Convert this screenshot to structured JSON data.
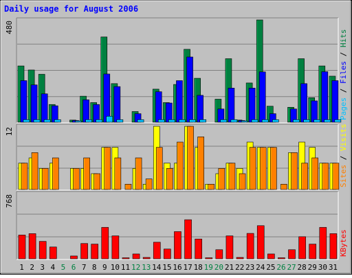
{
  "chart_data": {
    "title": "Daily usage for August 2006",
    "days": [
      "1",
      "2",
      "3",
      "4",
      "5",
      "6",
      "7",
      "8",
      "9",
      "10",
      "11",
      "12",
      "13",
      "14",
      "15",
      "16",
      "17",
      "18",
      "19",
      "20",
      "21",
      "22",
      "23",
      "24",
      "25",
      "26",
      "27",
      "28",
      "29",
      "30",
      "31"
    ],
    "weekend_days": [
      "5",
      "6",
      "12",
      "13",
      "19",
      "20",
      "26",
      "27"
    ],
    "colors": {
      "frame_bg": "#c0c0c0",
      "title": "#0000ff",
      "weekday_label": "#000000",
      "weekend_label": "#008040",
      "hits": "#008040",
      "files": "#0000ff",
      "pages": "#00c0ff",
      "visits": "#ffff00",
      "sites": "#ff8000",
      "kbytes": "#ff0000"
    },
    "panels": [
      {
        "type": "bar",
        "ymax_label": "480",
        "ylim": [
          0,
          480
        ],
        "legend": [
          "Pages",
          "Files",
          "Hits"
        ],
        "legend_separator": "/",
        "series": [
          {
            "name": "Hits",
            "color": "#008040",
            "values": [
              264,
              245,
              225,
              83,
              0,
              10,
              122,
              92,
              400,
              181,
              0,
              50,
              0,
              155,
              92,
              177,
              342,
              206,
              0,
              108,
              298,
              10,
              184,
              480,
              75,
              0,
              70,
              298,
              115,
              264,
              216
            ]
          },
          {
            "name": "Files",
            "color": "#0000ff",
            "values": [
              195,
              175,
              133,
              77,
              0,
              8,
              105,
              83,
              226,
              167,
              0,
              40,
              0,
              143,
              90,
              195,
              306,
              126,
              0,
              62,
              160,
              8,
              160,
              236,
              40,
              0,
              62,
              181,
              100,
              237,
              195
            ]
          },
          {
            "name": "Pages",
            "color": "#00c0ff",
            "values": [
              12,
              12,
              12,
              12,
              0,
              6,
              12,
              12,
              28,
              12,
              0,
              12,
              0,
              12,
              12,
              12,
              12,
              12,
              0,
              12,
              12,
              6,
              12,
              12,
              12,
              0,
              12,
              12,
              12,
              12,
              12
            ]
          }
        ]
      },
      {
        "type": "bar",
        "ymax_label": "12",
        "ylim": [
          0,
          12
        ],
        "legend": [
          "Sites",
          "Visits"
        ],
        "legend_separator": "/",
        "series": [
          {
            "name": "Visits",
            "color": "#ffff00",
            "values": [
              5,
              6,
              4,
              5,
              0,
              4,
              4,
              3,
              8,
              8,
              0,
              4,
              1,
              12,
              5,
              5,
              12,
              8,
              1,
              3,
              5,
              4,
              9,
              8,
              8,
              0,
              7,
              9,
              8,
              5,
              5
            ]
          },
          {
            "name": "Sites",
            "color": "#ff8000",
            "values": [
              5,
              7,
              4,
              6,
              0,
              4,
              6,
              3,
              8,
              6,
              1,
              6,
              2,
              8,
              4,
              9,
              12,
              10,
              1,
              4,
              5,
              3,
              8,
              8,
              8,
              1,
              7,
              5,
              6,
              5,
              5
            ]
          }
        ]
      },
      {
        "type": "bar",
        "ymax_label": "768",
        "ylim": [
          0,
          768
        ],
        "legend": [
          "KBytes"
        ],
        "legend_separator": "",
        "series": [
          {
            "name": "KBytes",
            "color": "#ff0000",
            "values": [
              280,
              296,
              205,
              139,
              0,
              33,
              180,
              173,
              370,
              270,
              12,
              57,
              16,
              195,
              115,
              320,
              460,
              233,
              12,
              107,
              270,
              16,
              299,
              390,
              57,
              12,
              107,
              260,
              173,
              370,
              296
            ]
          }
        ]
      }
    ]
  }
}
